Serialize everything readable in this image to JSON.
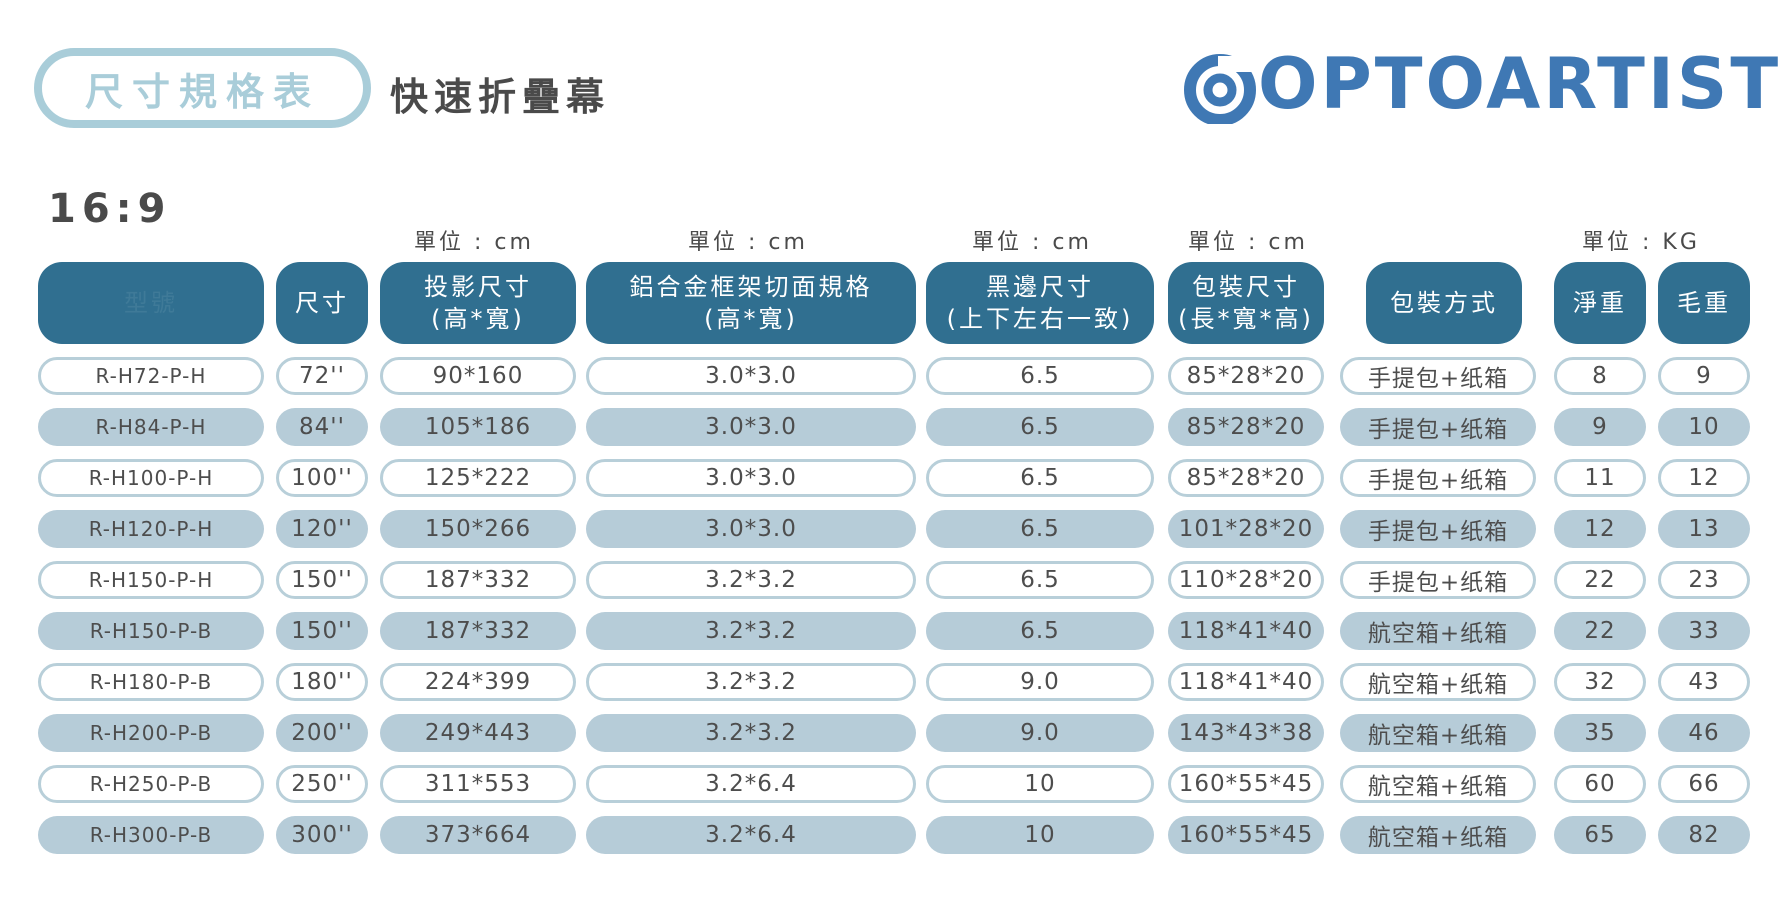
{
  "header": {
    "badge": "尺寸規格表",
    "subtitle": "快速折疊幕",
    "logo_text": "OPTOARTIST",
    "ratio": "16:9"
  },
  "units": {
    "projection": "單位 : cm",
    "frame": "單位 : cm",
    "border": "單位 : cm",
    "package": "單位 : cm",
    "weight": "單位 : KG"
  },
  "columns": {
    "model": "型號",
    "size": "尺寸",
    "projection_l1": "投影尺寸",
    "projection_l2": "(高*寬)",
    "frame_l1": "鋁合金框架切面規格",
    "frame_l2": "(高*寬)",
    "border_l1": "黑邊尺寸",
    "border_l2": "(上下左右一致)",
    "package_l1": "包裝尺寸",
    "package_l2": "(長*寬*高)",
    "packing": "包裝方式",
    "net": "淨重",
    "gross": "毛重"
  },
  "rows": [
    {
      "model": "R-H72-P-H",
      "size": "72''",
      "projection": "90*160",
      "frame": "3.0*3.0",
      "border": "6.5",
      "package": "85*28*20",
      "packing": "手提包+纸箱",
      "net": "8",
      "gross": "9"
    },
    {
      "model": "R-H84-P-H",
      "size": "84''",
      "projection": "105*186",
      "frame": "3.0*3.0",
      "border": "6.5",
      "package": "85*28*20",
      "packing": "手提包+纸箱",
      "net": "9",
      "gross": "10"
    },
    {
      "model": "R-H100-P-H",
      "size": "100''",
      "projection": "125*222",
      "frame": "3.0*3.0",
      "border": "6.5",
      "package": "85*28*20",
      "packing": "手提包+纸箱",
      "net": "11",
      "gross": "12"
    },
    {
      "model": "R-H120-P-H",
      "size": "120''",
      "projection": "150*266",
      "frame": "3.0*3.0",
      "border": "6.5",
      "package": "101*28*20",
      "packing": "手提包+纸箱",
      "net": "12",
      "gross": "13"
    },
    {
      "model": "R-H150-P-H",
      "size": "150''",
      "projection": "187*332",
      "frame": "3.2*3.2",
      "border": "6.5",
      "package": "110*28*20",
      "packing": "手提包+纸箱",
      "net": "22",
      "gross": "23"
    },
    {
      "model": "R-H150-P-B",
      "size": "150''",
      "projection": "187*332",
      "frame": "3.2*3.2",
      "border": "6.5",
      "package": "118*41*40",
      "packing": "航空箱+纸箱",
      "net": "22",
      "gross": "33"
    },
    {
      "model": "R-H180-P-B",
      "size": "180''",
      "projection": "224*399",
      "frame": "3.2*3.2",
      "border": "9.0",
      "package": "118*41*40",
      "packing": "航空箱+纸箱",
      "net": "32",
      "gross": "43"
    },
    {
      "model": "R-H200-P-B",
      "size": "200''",
      "projection": "249*443",
      "frame": "3.2*3.2",
      "border": "9.0",
      "package": "143*43*38",
      "packing": "航空箱+纸箱",
      "net": "35",
      "gross": "46"
    },
    {
      "model": "R-H250-P-B",
      "size": "250''",
      "projection": "311*553",
      "frame": "3.2*6.4",
      "border": "10",
      "package": "160*55*45",
      "packing": "航空箱+纸箱",
      "net": "60",
      "gross": "66"
    },
    {
      "model": "R-H300-P-B",
      "size": "300''",
      "projection": "373*664",
      "frame": "3.2*6.4",
      "border": "10",
      "package": "160*55*45",
      "packing": "航空箱+纸箱",
      "net": "65",
      "gross": "82"
    }
  ],
  "colors": {
    "header_fill": "#306f90",
    "row_fill": "#b6ccd8",
    "row_outline": "#b8cfd9",
    "badge": "#a9cdd9",
    "logo": "#3f78b4",
    "logo_accent": "#7bc4cf"
  }
}
